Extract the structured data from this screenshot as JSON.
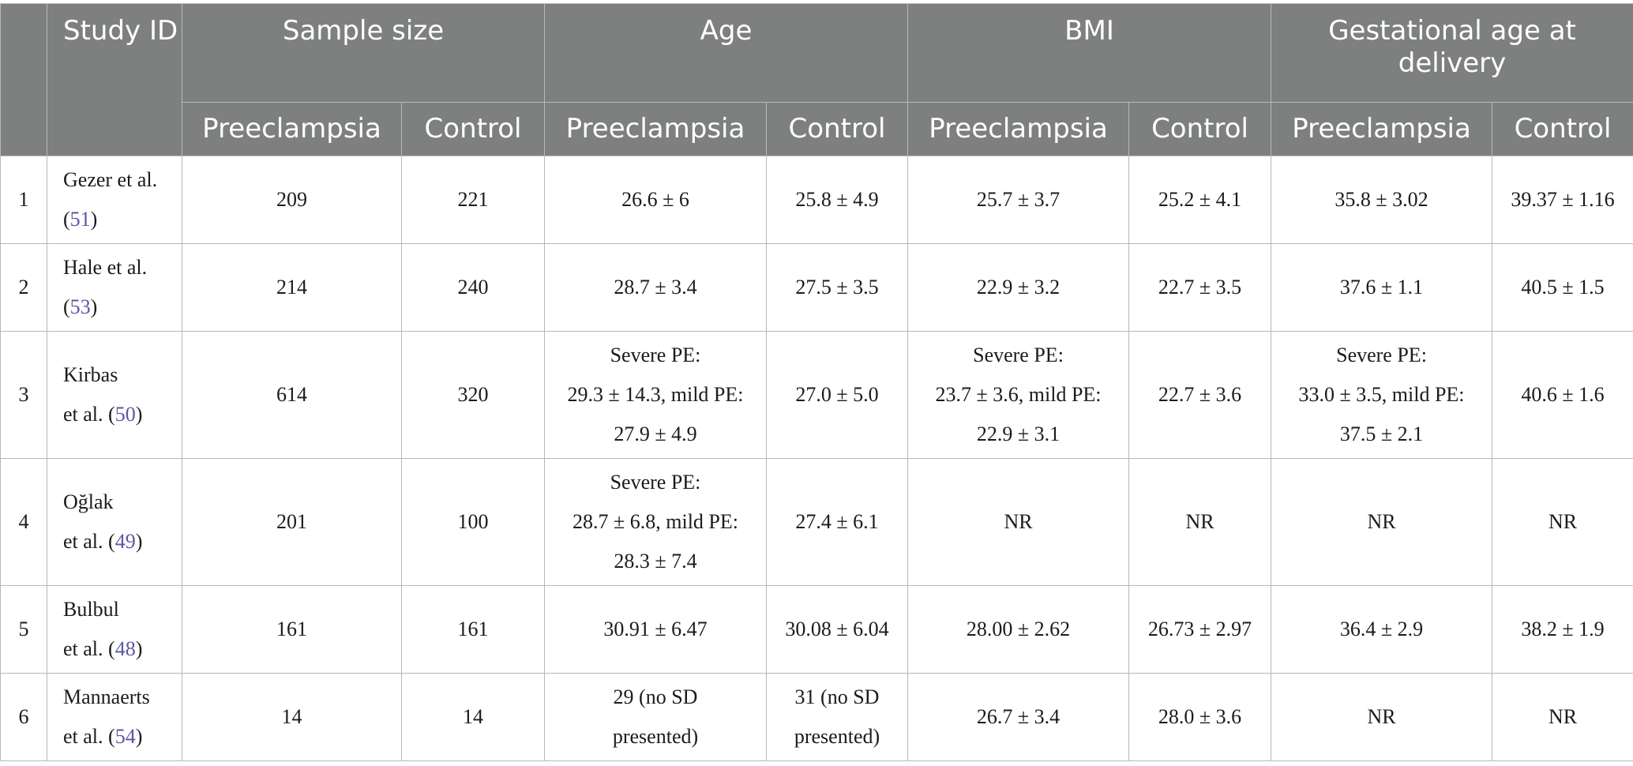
{
  "table": {
    "headers": {
      "number": "",
      "study_id": "Study ID",
      "groups": {
        "sample_size": "Sample size",
        "age": "Age",
        "bmi": "BMI",
        "gestational_age": "Gestational age at delivery"
      },
      "sub": {
        "preeclampsia": "Preeclampsia",
        "control": "Control"
      }
    },
    "rows": [
      {
        "num": "1",
        "study_a": "Gezer et al.",
        "ref": "51",
        "sample_pe": "209",
        "sample_ctrl": "221",
        "age_pe": [
          "26.6 ± 6"
        ],
        "age_ctrl": [
          "25.8 ± 4.9"
        ],
        "bmi_pe": [
          "25.7 ± 3.7"
        ],
        "bmi_ctrl": [
          "25.2 ± 4.1"
        ],
        "ga_pe": [
          "35.8 ± 3.02"
        ],
        "ga_ctrl": [
          "39.37 ± 1.16"
        ]
      },
      {
        "num": "2",
        "study_a": "Hale et al.",
        "ref": "53",
        "sample_pe": "214",
        "sample_ctrl": "240",
        "age_pe": [
          "28.7 ± 3.4"
        ],
        "age_ctrl": [
          "27.5 ± 3.5"
        ],
        "bmi_pe": [
          "22.9 ± 3.2"
        ],
        "bmi_ctrl": [
          "22.7 ± 3.5"
        ],
        "ga_pe": [
          "37.6 ± 1.1"
        ],
        "ga_ctrl": [
          "40.5 ± 1.5"
        ]
      },
      {
        "num": "3",
        "study_a": "Kirbas",
        "study_b": "et al.",
        "ref": "50",
        "sample_pe": "614",
        "sample_ctrl": "320",
        "age_pe": [
          "Severe PE:",
          "29.3 ± 14.3, mild PE:",
          "27.9 ± 4.9"
        ],
        "age_ctrl": [
          "27.0 ± 5.0"
        ],
        "bmi_pe": [
          "Severe PE:",
          "23.7 ± 3.6, mild PE:",
          "22.9 ± 3.1"
        ],
        "bmi_ctrl": [
          "22.7 ± 3.6"
        ],
        "ga_pe": [
          "Severe PE:",
          "33.0 ± 3.5, mild PE:",
          "37.5 ± 2.1"
        ],
        "ga_ctrl": [
          "40.6 ± 1.6"
        ]
      },
      {
        "num": "4",
        "study_a": "Oğlak",
        "study_b": "et al.",
        "ref": "49",
        "sample_pe": "201",
        "sample_ctrl": "100",
        "age_pe": [
          "Severe PE:",
          "28.7 ± 6.8, mild PE:",
          "28.3 ± 7.4"
        ],
        "age_ctrl": [
          "27.4 ± 6.1"
        ],
        "bmi_pe": [
          "NR"
        ],
        "bmi_ctrl": [
          "NR"
        ],
        "ga_pe": [
          "NR"
        ],
        "ga_ctrl": [
          "NR"
        ]
      },
      {
        "num": "5",
        "study_a": "Bulbul",
        "study_b": "et al.",
        "ref": "48",
        "sample_pe": "161",
        "sample_ctrl": "161",
        "age_pe": [
          "30.91 ± 6.47"
        ],
        "age_ctrl": [
          "30.08 ± 6.04"
        ],
        "bmi_pe": [
          "28.00 ± 2.62"
        ],
        "bmi_ctrl": [
          "26.73 ± 2.97"
        ],
        "ga_pe": [
          "36.4 ± 2.9"
        ],
        "ga_ctrl": [
          "38.2 ± 1.9"
        ]
      },
      {
        "num": "6",
        "study_a": "Mannaerts",
        "study_b": "et al.",
        "ref": "54",
        "sample_pe": "14",
        "sample_ctrl": "14",
        "age_pe": [
          "29 (no SD",
          "presented)"
        ],
        "age_ctrl": [
          "31 (no SD",
          "presented)"
        ],
        "bmi_pe": [
          "26.7 ± 3.4"
        ],
        "bmi_ctrl": [
          "28.0 ± 3.6"
        ],
        "ga_pe": [
          "NR"
        ],
        "ga_ctrl": [
          "NR"
        ]
      }
    ]
  }
}
